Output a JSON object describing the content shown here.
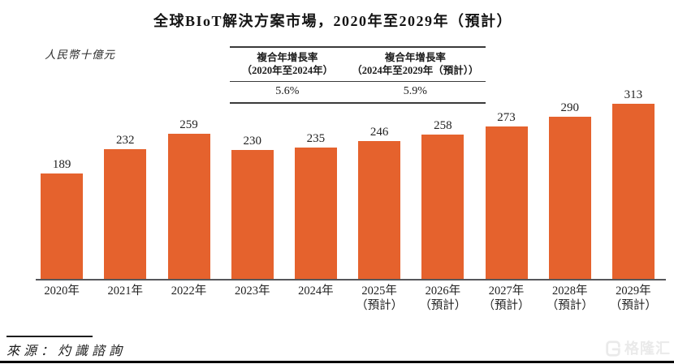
{
  "title": "全球BIoT解決方案市場，2020年至2029年（預計）",
  "unit_label": "人民幣十億元",
  "cagr_table": {
    "columns": [
      {
        "label_line1": "複合年增長率",
        "label_line2": "（2020年至2024年）",
        "value": "5.6%"
      },
      {
        "label_line1": "複合年增長率",
        "label_line2": "（2024年至2029年（預計））",
        "value": "5.9%"
      }
    ]
  },
  "chart_data": {
    "type": "bar",
    "title": "全球BIoT解決方案市場，2020年至2029年（預計）",
    "ylabel": "人民幣十億元",
    "categories": [
      "2020年",
      "2021年",
      "2022年",
      "2023年",
      "2024年",
      "2025年",
      "2026年",
      "2027年",
      "2028年",
      "2029年"
    ],
    "category_sublabels": [
      "",
      "",
      "",
      "",
      "",
      "（預計）",
      "（預計）",
      "（預計）",
      "（預計）",
      "（預計）"
    ],
    "values": [
      189,
      232,
      259,
      230,
      235,
      246,
      258,
      273,
      290,
      313
    ],
    "ylim": [
      0,
      313
    ],
    "grid": false,
    "legend": "none",
    "annotations": [
      {
        "label": "複合年增長率（2020年至2024年）",
        "value": "5.6%"
      },
      {
        "label": "複合年增長率（2024年至2029年（預計））",
        "value": "5.9%"
      }
    ]
  },
  "source": "來源：灼識諮詢",
  "watermark": {
    "text": "格隆汇",
    "icon": "gelonghui-logo-icon"
  },
  "colors": {
    "bar_orange": "#E5622D",
    "text_dark": "#1F1F1F",
    "axis_gray": "#56575B",
    "watermark_gray": "#EAEAEA"
  }
}
